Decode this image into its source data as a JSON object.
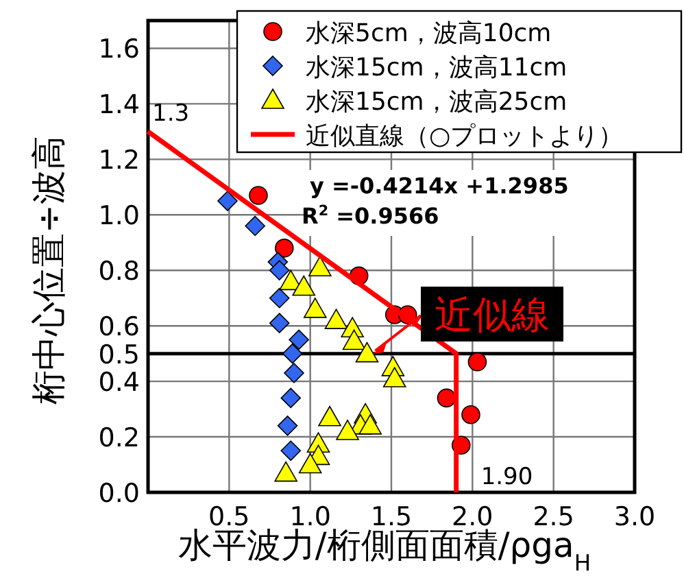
{
  "chart_data": {
    "type": "scatter",
    "xlabel": "水平波力/桁側面面積/ρga$_{H}$",
    "ylabel": "桁中心位置÷波高",
    "xlim": [
      0,
      3
    ],
    "ylim": [
      0,
      1.7
    ],
    "xticks": [
      {
        "value": 0.5,
        "label": "0.5"
      },
      {
        "value": 1,
        "label": "1.0"
      },
      {
        "value": 1.5,
        "label": "1.5"
      },
      {
        "value": 2,
        "label": "2.0"
      },
      {
        "value": 2.5,
        "label": "2.5"
      },
      {
        "value": 3,
        "label": "3.0"
      }
    ],
    "yticks": [
      {
        "value": 0,
        "label": "0.0"
      },
      {
        "value": 0.2,
        "label": "0.2"
      },
      {
        "value": 0.4,
        "label": "0.4"
      },
      {
        "value": 0.5,
        "label": "0.5"
      },
      {
        "value": 0.6,
        "label": "0.6"
      },
      {
        "value": 0.8,
        "label": "0.8"
      },
      {
        "value": 1,
        "label": "1.0"
      },
      {
        "value": 1.2,
        "label": "1.2"
      },
      {
        "value": 1.4,
        "label": "1.4"
      },
      {
        "value": 1.6,
        "label": "1.6"
      }
    ],
    "grid": true,
    "legend": "top right",
    "ref_lines": [
      {
        "axis": "y",
        "value": 0.5,
        "label": null,
        "color": "#000000"
      }
    ],
    "series": [
      {
        "name": "水深5cm，波高10cm",
        "color": "#ff0000",
        "marker": "circle",
        "x": [
          0.68,
          0.84,
          1.3,
          1.52,
          1.6,
          2.03,
          1.84,
          1.99,
          1.93
        ],
        "values": [
          1.07,
          0.88,
          0.78,
          0.64,
          0.64,
          0.47,
          0.34,
          0.28,
          0.17
        ]
      },
      {
        "name": "水深15cm，波高11cm",
        "color": "#3366ee",
        "marker": "diamond",
        "x": [
          0.49,
          0.66,
          0.8,
          0.81,
          0.81,
          0.81,
          0.93,
          0.89,
          0.9,
          0.88,
          0.86,
          0.88
        ],
        "values": [
          1.05,
          0.96,
          0.83,
          0.8,
          0.7,
          0.61,
          0.55,
          0.5,
          0.43,
          0.34,
          0.24,
          0.15
        ]
      },
      {
        "name": "水深15cm，波高25cm",
        "color": "#ffff00",
        "marker": "triangle",
        "x": [
          1.06,
          0.88,
          0.96,
          1.03,
          1.16,
          1.26,
          1.27,
          1.35,
          1.51,
          1.52,
          1.12,
          1.34,
          1.31,
          1.37,
          1.23,
          1.05,
          1.05,
          1.0,
          0.85
        ],
        "values": [
          0.81,
          0.76,
          0.74,
          0.66,
          0.62,
          0.59,
          0.545,
          0.5,
          0.45,
          0.41,
          0.27,
          0.28,
          0.24,
          0.24,
          0.22,
          0.175,
          0.13,
          0.1,
          0.07
        ]
      },
      {
        "name": "近似直線（○プロットより）",
        "type": "line",
        "color": "#ff0000",
        "marker": "none",
        "x": [
          0,
          1.9,
          1.9
        ],
        "values": [
          1.3,
          0.5,
          0
        ]
      }
    ],
    "annotations": [
      {
        "text": "1.3",
        "x": 0,
        "y": 1.3
      },
      {
        "text": "1.90",
        "x": 1.9,
        "y": 0
      },
      "y =-0.4214x +1.2985",
      "R$^{2}$ =0.9566",
      "近似線"
    ]
  }
}
